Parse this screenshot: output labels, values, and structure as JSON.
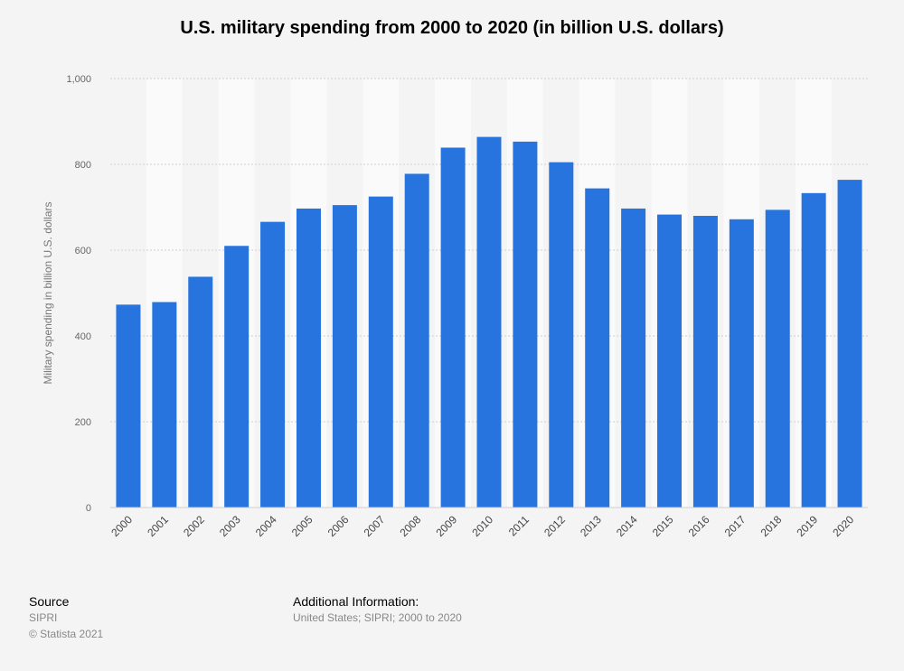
{
  "chart_data": {
    "type": "bar",
    "title": "U.S. military spending from 2000 to 2020 (in billion U.S. dollars)",
    "xlabel": "",
    "ylabel": "Military spending in billion U.S. dollars",
    "categories": [
      "2000",
      "2001",
      "2002",
      "2003",
      "2004",
      "2005",
      "2006",
      "2007",
      "2008",
      "2009",
      "2010",
      "2011",
      "2012",
      "2013",
      "2014",
      "2015",
      "2016",
      "2017",
      "2018",
      "2019",
      "2020"
    ],
    "values": [
      473,
      479,
      538,
      610,
      666,
      697,
      705,
      725,
      778,
      839,
      864,
      853,
      805,
      744,
      697,
      683,
      680,
      672,
      694,
      733,
      764
    ],
    "ylim": [
      0,
      1000
    ],
    "yticks": [
      0,
      200,
      400,
      600,
      800,
      1000
    ],
    "ytick_labels": [
      "0",
      "200",
      "400",
      "600",
      "800",
      "1,000"
    ],
    "bar_color": "#2874df",
    "grid": true
  },
  "footer": {
    "source_heading": "Source",
    "source_name": "SIPRI",
    "copyright": "© Statista 2021",
    "additional_heading": "Additional Information:",
    "additional_text": "United States; SIPRI; 2000 to 2020"
  }
}
